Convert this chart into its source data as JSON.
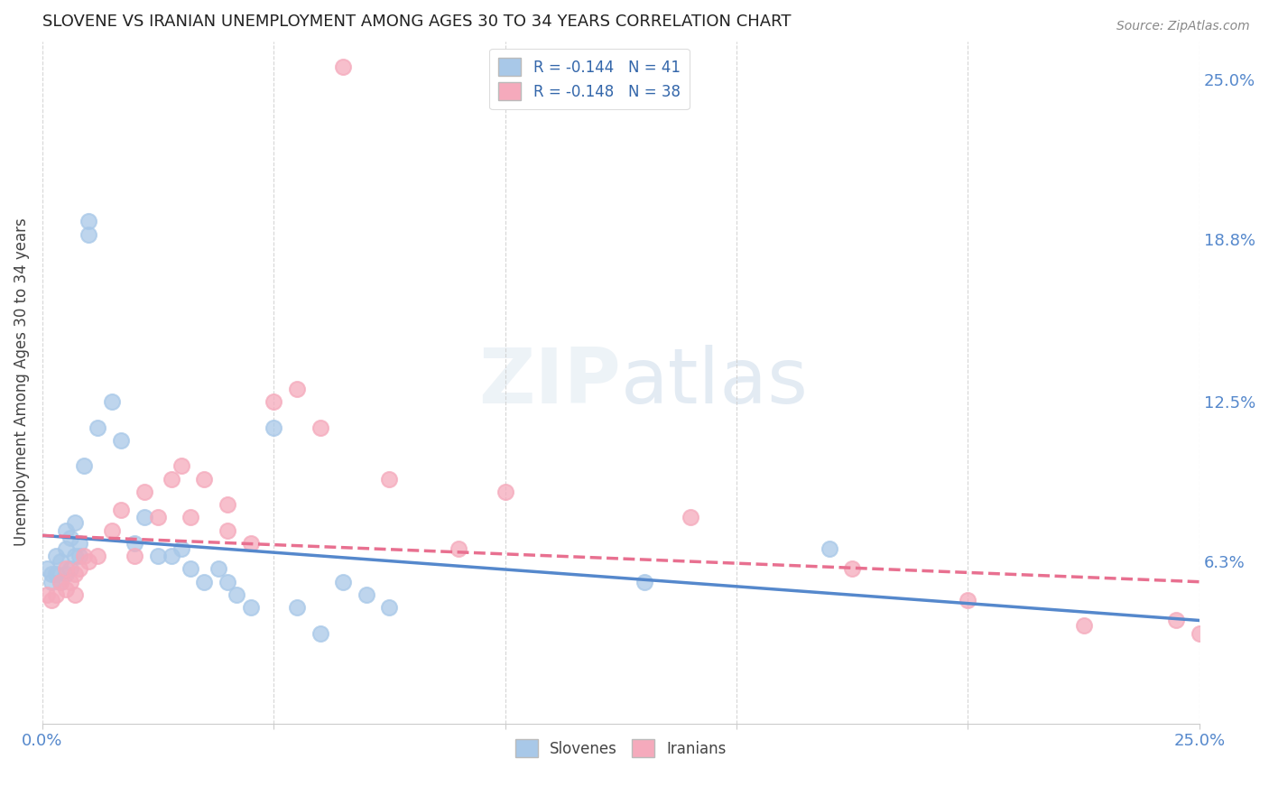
{
  "title": "SLOVENE VS IRANIAN UNEMPLOYMENT AMONG AGES 30 TO 34 YEARS CORRELATION CHART",
  "source": "Source: ZipAtlas.com",
  "ylabel": "Unemployment Among Ages 30 to 34 years",
  "xlim": [
    0.0,
    0.25
  ],
  "ylim": [
    0.0,
    0.265
  ],
  "slovene_color": "#a8c8e8",
  "iranian_color": "#f5aabc",
  "slovene_line_color": "#5588cc",
  "iranian_line_color": "#e87090",
  "background_color": "#ffffff",
  "grid_color": "#cccccc",
  "legend_r_slovene": "R = -0.144",
  "legend_n_slovene": "N = 41",
  "legend_r_iranian": "R = -0.148",
  "legend_n_iranian": "N = 38",
  "slovene_x": [
    0.001,
    0.002,
    0.002,
    0.003,
    0.003,
    0.004,
    0.004,
    0.005,
    0.005,
    0.005,
    0.006,
    0.006,
    0.007,
    0.007,
    0.008,
    0.008,
    0.009,
    0.01,
    0.01,
    0.012,
    0.015,
    0.017,
    0.02,
    0.022,
    0.025,
    0.028,
    0.03,
    0.032,
    0.035,
    0.038,
    0.04,
    0.042,
    0.045,
    0.05,
    0.055,
    0.06,
    0.065,
    0.07,
    0.075,
    0.13,
    0.17
  ],
  "slovene_y": [
    0.06,
    0.055,
    0.058,
    0.058,
    0.065,
    0.063,
    0.055,
    0.058,
    0.068,
    0.075,
    0.06,
    0.072,
    0.065,
    0.078,
    0.065,
    0.07,
    0.1,
    0.195,
    0.19,
    0.115,
    0.125,
    0.11,
    0.07,
    0.08,
    0.065,
    0.065,
    0.068,
    0.06,
    0.055,
    0.06,
    0.055,
    0.05,
    0.045,
    0.115,
    0.045,
    0.035,
    0.055,
    0.05,
    0.045,
    0.055,
    0.068
  ],
  "iranian_x": [
    0.001,
    0.002,
    0.003,
    0.004,
    0.005,
    0.005,
    0.006,
    0.007,
    0.007,
    0.008,
    0.009,
    0.01,
    0.012,
    0.015,
    0.017,
    0.02,
    0.022,
    0.025,
    0.028,
    0.03,
    0.032,
    0.035,
    0.04,
    0.04,
    0.045,
    0.05,
    0.055,
    0.06,
    0.065,
    0.075,
    0.09,
    0.1,
    0.14,
    0.175,
    0.2,
    0.225,
    0.245,
    0.25
  ],
  "iranian_y": [
    0.05,
    0.048,
    0.05,
    0.055,
    0.052,
    0.06,
    0.055,
    0.058,
    0.05,
    0.06,
    0.065,
    0.063,
    0.065,
    0.075,
    0.083,
    0.065,
    0.09,
    0.08,
    0.095,
    0.1,
    0.08,
    0.095,
    0.075,
    0.085,
    0.07,
    0.125,
    0.13,
    0.115,
    0.255,
    0.095,
    0.068,
    0.09,
    0.08,
    0.06,
    0.048,
    0.038,
    0.04,
    0.035
  ],
  "slovene_trend_x": [
    0.0,
    0.25
  ],
  "slovene_trend_y": [
    0.073,
    0.04
  ],
  "iranian_trend_x": [
    0.0,
    0.25
  ],
  "iranian_trend_y": [
    0.073,
    0.055
  ]
}
